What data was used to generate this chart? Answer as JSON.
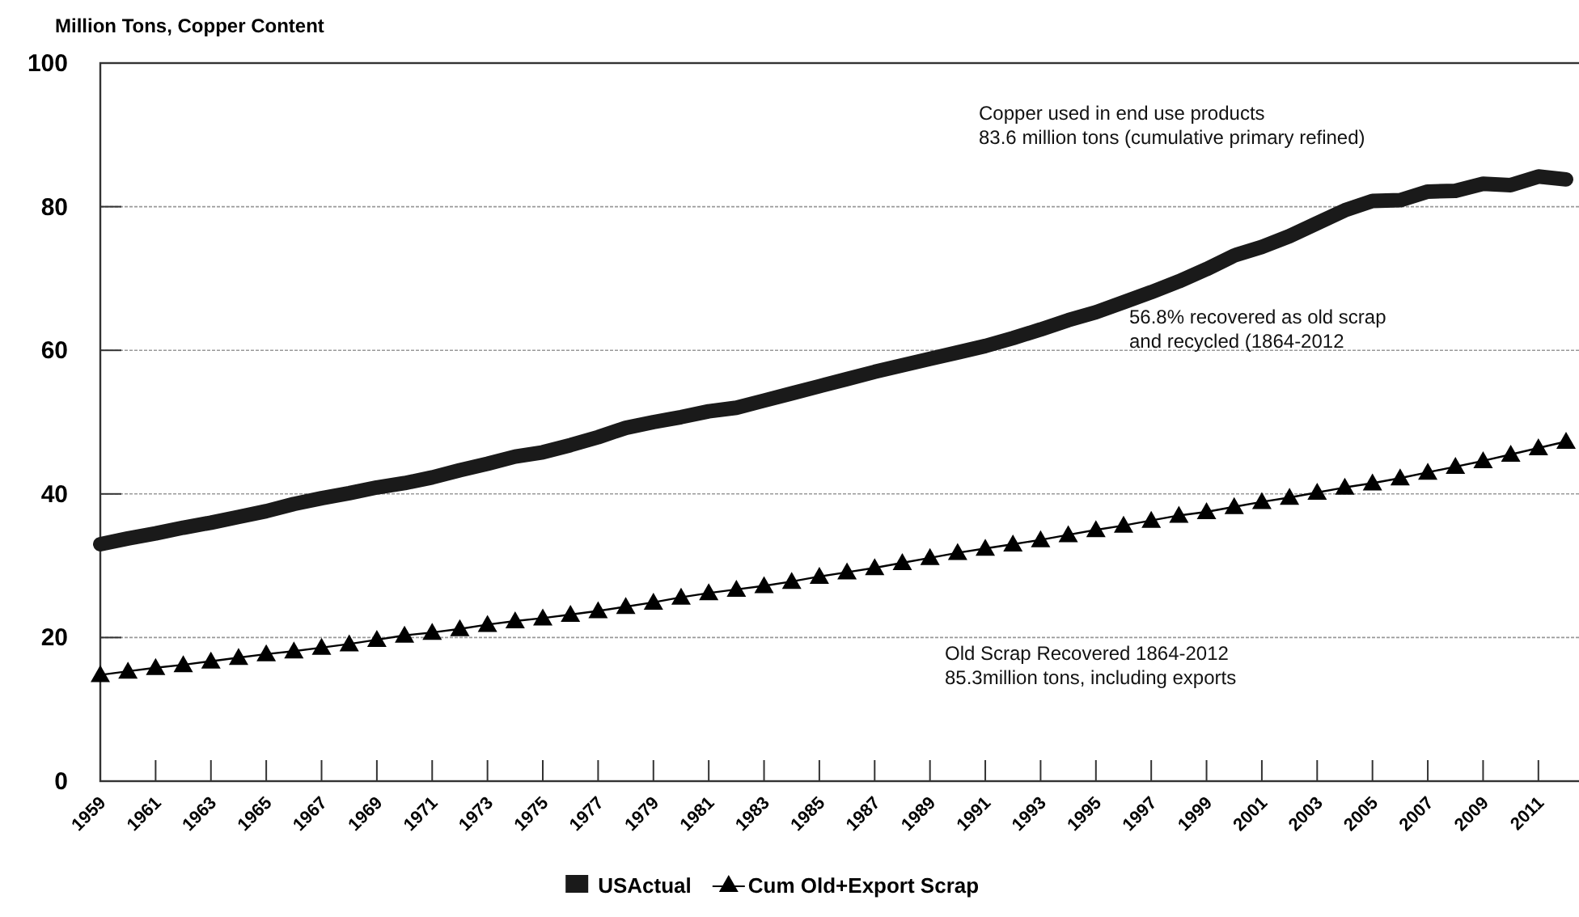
{
  "chart_data": {
    "type": "line",
    "ylabel": "Million Tons, Copper Content",
    "categories": [
      "1959",
      null,
      "1961",
      null,
      "1963",
      null,
      "1965",
      null,
      "1967",
      null,
      "1969",
      null,
      "1971",
      null,
      "1973",
      null,
      "1975",
      null,
      "1977",
      null,
      "1979",
      null,
      "1981",
      null,
      "1983",
      null,
      "1985",
      null,
      "1987",
      null,
      "1989",
      null,
      "1991",
      null,
      "1993",
      null,
      "1995",
      null,
      "1997",
      null,
      "1999",
      null,
      "2001",
      null,
      "2003",
      null,
      "2005",
      null,
      "2007",
      null,
      "2009",
      null,
      "2011",
      null
    ],
    "series": [
      {
        "name": "USActual",
        "color": "#1a1a1a",
        "marker": "none",
        "values": [
          33,
          33.8,
          34.5,
          35.3,
          36,
          36.8,
          37.6,
          38.6,
          39.4,
          40.1,
          40.9,
          41.5,
          42.3,
          43.3,
          44.2,
          45.2,
          45.8,
          46.8,
          47.9,
          49.2,
          50,
          50.7,
          51.5,
          52,
          53,
          54,
          55,
          56,
          57,
          57.9,
          58.8,
          59.7,
          60.6,
          61.7,
          62.9,
          64.2,
          65.3,
          66.7,
          68.1,
          69.6,
          71.3,
          73.2,
          74.4,
          75.9,
          77.7,
          79.5,
          80.8,
          80.9,
          82.1,
          82.2,
          83.2,
          83,
          84.2,
          83.8
        ]
      },
      {
        "name": "Cum Old+Export Scrap",
        "color": "#000000",
        "marker": "triangle",
        "values": [
          14.8,
          15.3,
          15.8,
          16.2,
          16.7,
          17.2,
          17.7,
          18.1,
          18.6,
          19.1,
          19.7,
          20.3,
          20.7,
          21.2,
          21.8,
          22.3,
          22.7,
          23.2,
          23.7,
          24.3,
          24.9,
          25.6,
          26.2,
          26.7,
          27.2,
          27.8,
          28.5,
          29.1,
          29.7,
          30.4,
          31.1,
          31.8,
          32.4,
          33,
          33.6,
          34.3,
          35,
          35.6,
          36.3,
          37,
          37.5,
          38.2,
          38.9,
          39.5,
          40.2,
          40.9,
          41.5,
          42.2,
          43,
          43.8,
          44.6,
          45.5,
          46.4,
          47.3
        ]
      }
    ],
    "ylim": [
      0,
      100
    ],
    "yticks": [
      0,
      20,
      40,
      60,
      80,
      100
    ],
    "grid": "y",
    "legend": "bottom",
    "annotations": [
      "Copper used in end use products\n83.6 million tons (cumulative primary  refined)",
      "56.8% recovered as old scrap\nand recycled (1864-2012",
      "Old Scrap Recovered  1864-2012\n85.3million tons, including exports"
    ]
  }
}
